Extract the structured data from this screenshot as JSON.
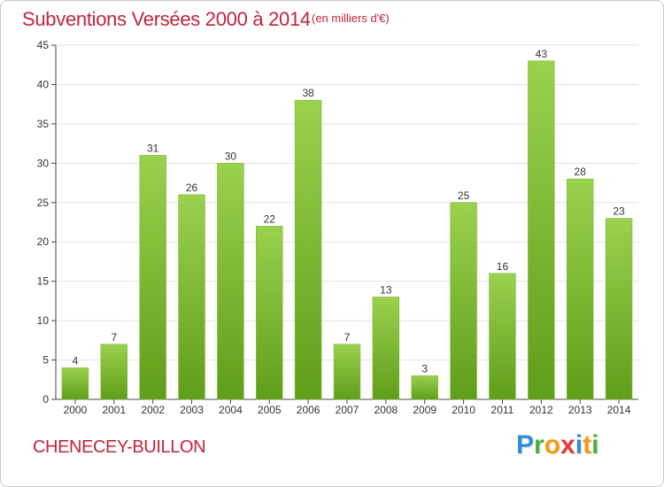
{
  "chart_data": {
    "type": "bar",
    "title": "Subventions Versées 2000 à 2014",
    "subtitle": "(en milliers d'€)",
    "xlabel": "",
    "ylabel": "",
    "categories": [
      "2000",
      "2001",
      "2002",
      "2003",
      "2004",
      "2005",
      "2006",
      "2007",
      "2008",
      "2009",
      "2010",
      "2011",
      "2012",
      "2013",
      "2014"
    ],
    "values": [
      4,
      7,
      31,
      26,
      30,
      22,
      38,
      7,
      13,
      3,
      25,
      16,
      43,
      28,
      23
    ],
    "ylim": [
      0,
      45
    ],
    "yticks": [
      "0",
      "5",
      "10",
      "15",
      "20",
      "25",
      "30",
      "35",
      "40",
      "45"
    ],
    "grid": true,
    "bar_color_top": "#9ad14f",
    "bar_color_bottom": "#5f9e1a"
  },
  "footer": {
    "commune": "CHENECEY-BUILLON"
  },
  "logo": {
    "text": "Proxiti"
  }
}
